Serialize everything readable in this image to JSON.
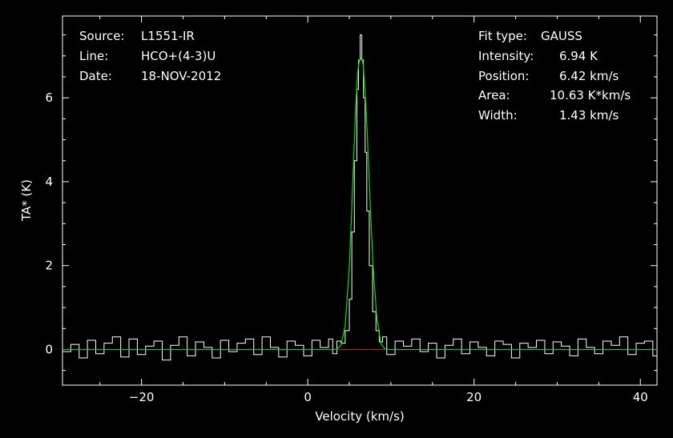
{
  "header": {
    "source_label": "Source:",
    "source_value": "L1551-IR",
    "line_label": "Line:",
    "line_value": "HCO+(4-3)U",
    "date_label": "Date:",
    "date_value": "18-NOV-2012"
  },
  "fit": {
    "fit_type_label": "Fit type:",
    "fit_type_value": "GAUSS",
    "intensity_label": "Intensity:",
    "intensity_value": "6.94 K",
    "position_label": "Position:",
    "position_value": "6.42 km/s",
    "area_label": "Area:",
    "area_value": "10.63 K*km/s",
    "width_label": "Width:",
    "width_value": "1.43 km/s"
  },
  "colors": {
    "background": "#000000",
    "spectrum": "#ffffff",
    "fit": "#00e000",
    "baseline": "#ff0000"
  },
  "chart_data": {
    "type": "line",
    "xlabel": "Velocity (km/s)",
    "ylabel": "TA* (K)",
    "xlim": [
      -29.5,
      42
    ],
    "ylim": [
      -0.85,
      7.95
    ],
    "xticks": [
      -20,
      0,
      20,
      40
    ],
    "xtick_labels": [
      "−20",
      "0",
      "20",
      "40"
    ],
    "yticks": [
      0,
      2,
      4,
      6
    ],
    "ytick_labels": [
      "0",
      "2",
      "4",
      "6"
    ],
    "grid": false,
    "series": [
      {
        "style": "step",
        "x": [
          -29.5,
          -28.5,
          -27.5,
          -26.5,
          -25.5,
          -24.5,
          -23.5,
          -22.5,
          -21.5,
          -20.5,
          -19.5,
          -18.5,
          -17.5,
          -16.5,
          -15.5,
          -14.5,
          -13.5,
          -12.5,
          -11.5,
          -10.5,
          -9.5,
          -8.5,
          -7.5,
          -6.5,
          -5.5,
          -4.5,
          -3.5,
          -2.5,
          -1.5,
          -0.5,
          0.5,
          1.5,
          2.5,
          3.0,
          3.5,
          4.0,
          4.5,
          5.0,
          5.3,
          5.6,
          5.9,
          6.1,
          6.3,
          6.5,
          6.7,
          6.9,
          7.1,
          7.4,
          7.8,
          8.2,
          8.6,
          9.0,
          9.5,
          10.5,
          11.5,
          12.5,
          13.5,
          14.5,
          15.5,
          16.5,
          17.5,
          18.5,
          19.5,
          20.5,
          21.5,
          22.5,
          23.5,
          24.5,
          25.5,
          26.5,
          27.5,
          28.5,
          29.5,
          30.5,
          31.5,
          32.5,
          33.5,
          34.5,
          35.5,
          36.5,
          37.5,
          38.5,
          39.5,
          40.5,
          41.5,
          42.0
        ],
        "y": [
          -0.05,
          0.12,
          -0.2,
          0.22,
          -0.1,
          0.15,
          0.3,
          -0.18,
          0.25,
          -0.12,
          0.08,
          0.2,
          -0.25,
          0.1,
          0.3,
          -0.15,
          0.18,
          0.05,
          -0.2,
          0.22,
          -0.05,
          0.15,
          0.25,
          -0.12,
          0.3,
          0.05,
          -0.18,
          0.2,
          0.1,
          -0.15,
          0.22,
          0.05,
          0.25,
          -0.1,
          0.2,
          0.15,
          0.45,
          1.2,
          2.8,
          4.5,
          6.2,
          6.9,
          7.5,
          6.9,
          6.0,
          4.7,
          3.3,
          2.0,
          0.9,
          0.45,
          0.18,
          0.3,
          -0.12,
          0.2,
          0.08,
          0.25,
          -0.05,
          0.15,
          -0.2,
          0.1,
          0.25,
          -0.1,
          0.18,
          0.05,
          -0.15,
          0.2,
          0.12,
          -0.2,
          0.15,
          0.05,
          0.22,
          -0.1,
          0.18,
          0.08,
          -0.15,
          0.25,
          0.05,
          -0.1,
          0.2,
          0.1,
          0.3,
          -0.12,
          0.15,
          0.2,
          -0.15,
          -0.45
        ]
      },
      {
        "style": "line",
        "x": [
          -29.5,
          3.0,
          3.5,
          4.0,
          4.5,
          5.0,
          5.25,
          5.5,
          5.75,
          6.0,
          6.2,
          6.42,
          6.65,
          6.9,
          7.15,
          7.4,
          7.65,
          7.9,
          8.3,
          8.8,
          9.3,
          9.8,
          42.0
        ],
        "y": [
          0,
          0,
          0.01,
          0.1,
          0.56,
          1.99,
          3.13,
          4.45,
          5.72,
          6.6,
          6.88,
          6.94,
          6.82,
          6.15,
          5.16,
          4.0,
          2.85,
          1.86,
          0.77,
          0.14,
          0.01,
          0,
          0
        ]
      },
      {
        "style": "line",
        "x": [
          3.5,
          9.3
        ],
        "y": [
          0,
          0
        ]
      }
    ]
  }
}
